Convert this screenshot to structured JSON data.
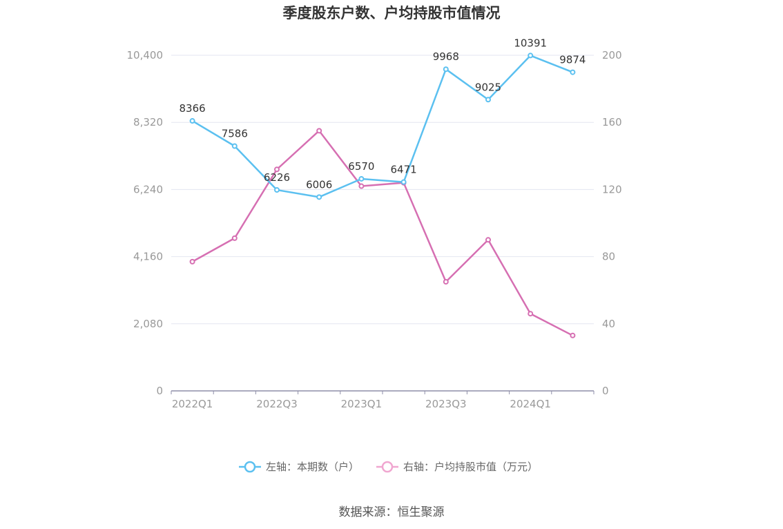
{
  "chart_data": {
    "type": "line",
    "title": "季度股东户数、户均持股市值情况",
    "categories": [
      "2022Q1",
      "2022Q2",
      "2022Q3",
      "2022Q4",
      "2023Q1",
      "2023Q2",
      "2023Q3",
      "2023Q4",
      "2024Q1",
      "2024Q2"
    ],
    "x_tick_labels": [
      "2022Q1",
      "2022Q3",
      "2023Q1",
      "2023Q3",
      "2024Q1"
    ],
    "y_left": {
      "ylim": [
        0,
        10400
      ],
      "ticks": [
        "0",
        "2,080",
        "4,160",
        "6,240",
        "8,320",
        "10,400"
      ]
    },
    "y_right": {
      "ylim": [
        0,
        200
      ],
      "ticks": [
        "0",
        "40",
        "80",
        "120",
        "160",
        "200"
      ]
    },
    "series": [
      {
        "name": "左轴：本期数（户）",
        "axis": "left",
        "color": "#5bc0f0",
        "values": [
          8366,
          7586,
          6226,
          6006,
          6570,
          6471,
          9968,
          9025,
          10391,
          9874
        ],
        "labels": [
          "8366",
          "7586",
          "6226",
          "6006",
          "6570",
          "6471",
          "9968",
          "9025",
          "10391",
          "9874"
        ]
      },
      {
        "name": "右轴：户均持股市值（万元）",
        "axis": "right",
        "color": "#d66fb2",
        "values": [
          77,
          91,
          132,
          155,
          122,
          124,
          65,
          90,
          46,
          33
        ]
      }
    ],
    "legend_position": "bottom",
    "grid": true
  },
  "footer": {
    "source": "数据来源：恒生聚源"
  }
}
